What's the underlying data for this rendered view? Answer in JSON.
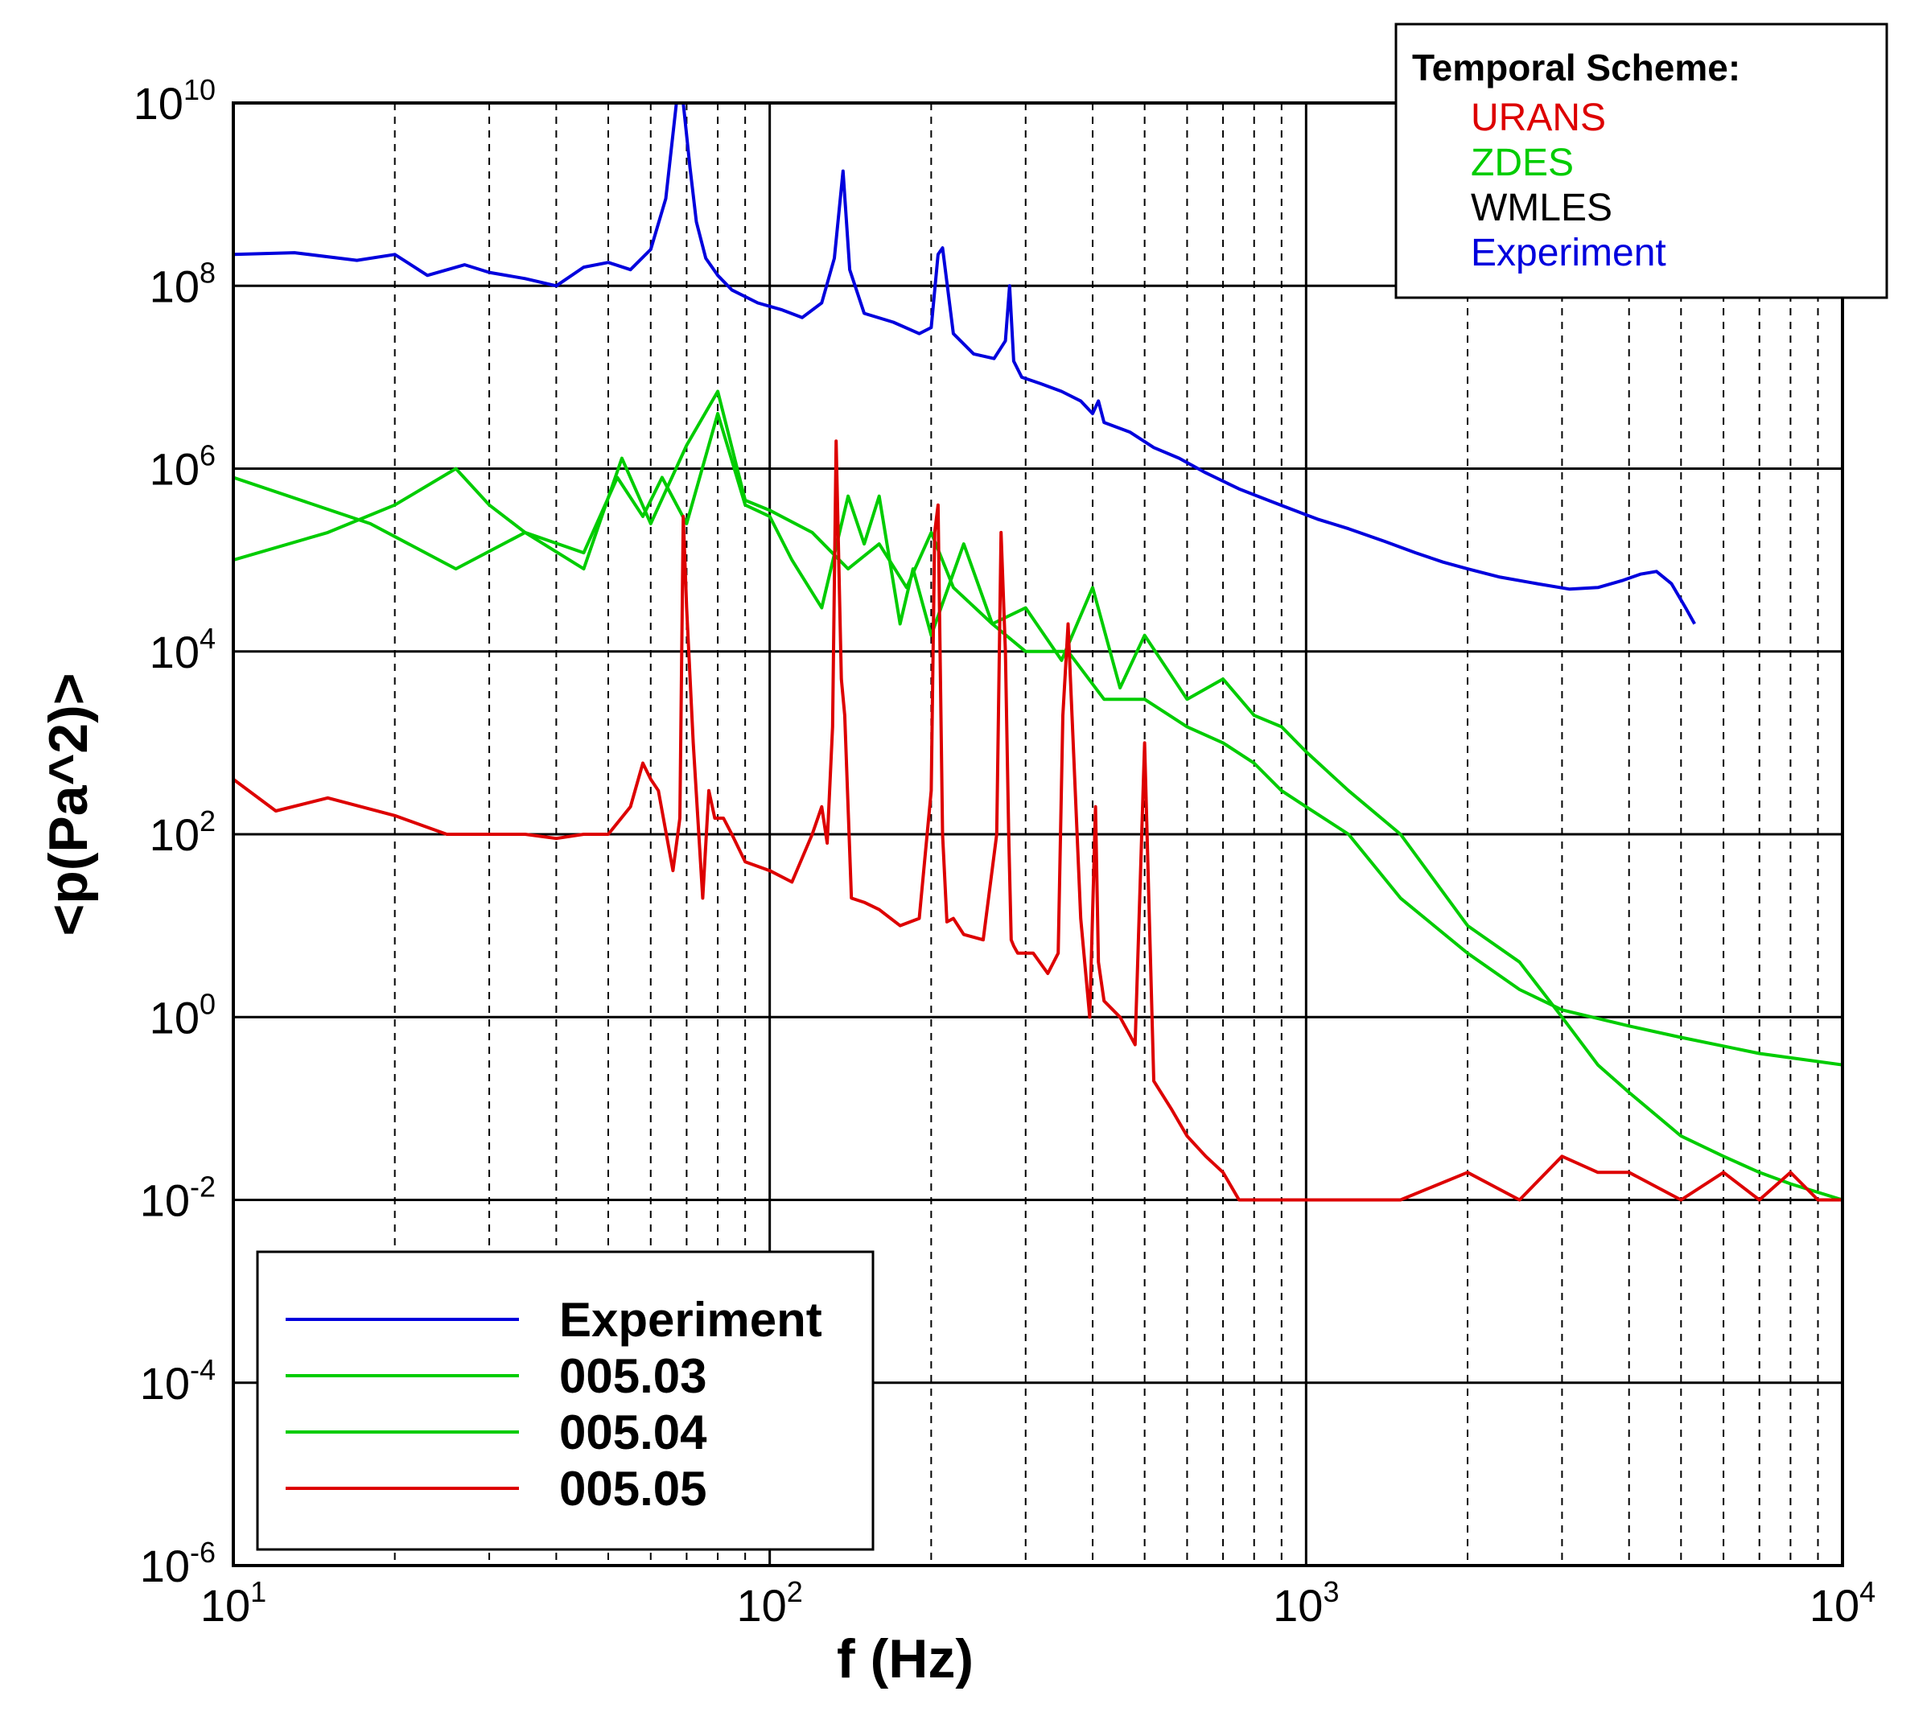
{
  "chart_data": {
    "type": "line",
    "title": "",
    "xlabel": "f (Hz)",
    "ylabel": "<p(Pa^2)>",
    "xscale": "log",
    "yscale": "log",
    "xlim": [
      10,
      10000
    ],
    "ylim": [
      1e-06,
      10000000000.0
    ],
    "x_ticks": [
      {
        "base": "10",
        "exp": "1",
        "value": 10
      },
      {
        "base": "10",
        "exp": "2",
        "value": 100
      },
      {
        "base": "10",
        "exp": "3",
        "value": 1000
      },
      {
        "base": "10",
        "exp": "4",
        "value": 10000
      }
    ],
    "y_ticks": [
      {
        "base": "10",
        "exp": "10",
        "value": 10000000000.0
      },
      {
        "base": "10",
        "exp": "8",
        "value": 100000000.0
      },
      {
        "base": "10",
        "exp": "6",
        "value": 1000000.0
      },
      {
        "base": "10",
        "exp": "4",
        "value": 10000.0
      },
      {
        "base": "10",
        "exp": "2",
        "value": 100.0
      },
      {
        "base": "10",
        "exp": "0",
        "value": 1
      },
      {
        "base": "10",
        "exp": "-2",
        "value": 0.01
      },
      {
        "base": "10",
        "exp": "-4",
        "value": 0.0001
      },
      {
        "base": "10",
        "exp": "-6",
        "value": 1e-06
      }
    ],
    "grid": {
      "major": "solid",
      "minor_x": "dashed"
    },
    "legend": {
      "position": "bottom-left",
      "entries": [
        {
          "label": "Experiment",
          "color": "#0000dd"
        },
        {
          "label": "005.03",
          "color": "#00cc00"
        },
        {
          "label": "005.04",
          "color": "#00cc00"
        },
        {
          "label": "005.05",
          "color": "#dd0000"
        }
      ]
    },
    "scheme_box": {
      "position": "top-right",
      "title": "Temporal Scheme:",
      "entries": [
        {
          "label": "URANS",
          "color": "#dd0000"
        },
        {
          "label": "ZDES",
          "color": "#00cc00"
        },
        {
          "label": "WMLES",
          "color": "#000000"
        },
        {
          "label": "Experiment",
          "color": "#0000dd"
        }
      ]
    },
    "series": [
      {
        "name": "Experiment",
        "color": "#0000dd",
        "x": [
          10,
          13,
          17,
          20,
          23,
          27,
          30,
          35,
          40,
          45,
          50,
          55,
          60,
          64,
          67,
          69,
          71,
          73,
          76,
          80,
          85,
          95,
          105,
          115,
          125,
          132,
          137,
          141,
          150,
          170,
          190,
          200,
          206,
          210,
          220,
          240,
          262,
          275,
          280,
          285,
          295,
          320,
          350,
          380,
          400,
          410,
          420,
          470,
          520,
          580,
          650,
          750,
          850,
          950,
          1050,
          1200,
          1400,
          1600,
          1800,
          2000,
          2300,
          2700,
          3100,
          3500,
          3900,
          4200,
          4500,
          4800,
          5100,
          5300
        ],
        "y": [
          220000000.0,
          230000000.0,
          190000000.0,
          220000000.0,
          130000000.0,
          170000000.0,
          140000000.0,
          120000000.0,
          100000000.0,
          160000000.0,
          180000000.0,
          150000000.0,
          250000000.0,
          900000000.0,
          10000000000.0,
          10000000000.0,
          2000000000.0,
          500000000.0,
          200000000.0,
          130000000.0,
          90000000.0,
          65000000.0,
          55000000.0,
          45000000.0,
          65000000.0,
          200000000.0,
          1800000000.0,
          150000000.0,
          50000000.0,
          40000000.0,
          30000000.0,
          35000000.0,
          220000000.0,
          260000000.0,
          30000000.0,
          18000000.0,
          16000000.0,
          25000000.0,
          100000000.0,
          15000000.0,
          10000000.0,
          8500000.0,
          7000000.0,
          5500000.0,
          4000000.0,
          5500000.0,
          3200000.0,
          2500000.0,
          1700000.0,
          1300000.0,
          900000.0,
          600000.0,
          450000.0,
          350000.0,
          280000.0,
          220000.0,
          160000.0,
          120000.0,
          95000.0,
          80000.0,
          65000.0,
          55000.0,
          48000.0,
          50000.0,
          60000.0,
          70000.0,
          75000.0,
          55000.0,
          30000.0,
          20000.0
        ]
      },
      {
        "name": "005.03",
        "color": "#00cc00",
        "x": [
          10,
          18,
          26,
          35,
          45,
          53,
          60,
          70,
          80,
          90,
          100,
          120,
          140,
          160,
          180,
          200,
          220,
          260,
          300,
          360,
          420,
          500,
          600,
          700,
          800,
          900,
          1000,
          1200,
          1500,
          2000,
          2500,
          3000,
          4000,
          5000,
          7000,
          10000
        ],
        "y": [
          800000.0,
          250000.0,
          80000.0,
          200000.0,
          80000.0,
          1300000.0,
          250000.0,
          1800000.0,
          7000000.0,
          450000.0,
          350000.0,
          200000.0,
          80000.0,
          150000.0,
          50000.0,
          200000.0,
          50000.0,
          20000.0,
          10000.0,
          10000.0,
          3000.0,
          3000.0,
          1500.0,
          1000.0,
          600.0,
          300.0,
          200.0,
          100.0,
          20,
          5,
          2,
          1.2,
          0.8,
          0.6,
          0.4,
          0.3
        ]
      },
      {
        "name": "005.04",
        "color": "#00cc00",
        "x": [
          10,
          15,
          20,
          26,
          30,
          35,
          45,
          52,
          58,
          63,
          70,
          80,
          90,
          100,
          110,
          125,
          140,
          150,
          160,
          175,
          185,
          200,
          230,
          260,
          300,
          350,
          400,
          450,
          500,
          600,
          700,
          800,
          900,
          1000,
          1200,
          1500,
          2000,
          2500,
          3000,
          3500,
          4000,
          5000,
          6000,
          7000,
          8000,
          10000
        ],
        "y": [
          100000.0,
          200000.0,
          400000.0,
          1000000.0,
          400000.0,
          200000.0,
          120000.0,
          800000.0,
          300000.0,
          800000.0,
          250000.0,
          4000000.0,
          400000.0,
          300000.0,
          100000.0,
          30000.0,
          500000.0,
          150000.0,
          500000.0,
          20000.0,
          80000.0,
          15000.0,
          150000.0,
          20000.0,
          30000.0,
          8000.0,
          50000.0,
          4000.0,
          15000.0,
          3000.0,
          5000.0,
          2000.0,
          1500.0,
          800.0,
          300.0,
          100.0,
          10,
          4,
          1,
          0.3,
          0.15,
          0.05,
          0.03,
          0.02,
          0.015,
          0.01
        ]
      },
      {
        "name": "005.05",
        "color": "#dd0000",
        "x": [
          10,
          12,
          15,
          20,
          25,
          30,
          35,
          40,
          45,
          50,
          55,
          58,
          60,
          62,
          66,
          68,
          69,
          70,
          72,
          75,
          77,
          79,
          82,
          85,
          90,
          100,
          110,
          120,
          125,
          128,
          131,
          133,
          136,
          138,
          142,
          150,
          160,
          175,
          190,
          200,
          203,
          206,
          210,
          214,
          220,
          230,
          250,
          265,
          270,
          275,
          279,
          282,
          285,
          290,
          310,
          330,
          345,
          352,
          360,
          380,
          395,
          405,
          410,
          420,
          450,
          480,
          500,
          520,
          560,
          600,
          650,
          700,
          750,
          800,
          900,
          1000,
          1200,
          1500,
          2000,
          2500,
          3000,
          3500,
          4000,
          5000,
          6000,
          7000,
          8000,
          9000,
          10000
        ],
        "y": [
          400.0,
          180.0,
          250.0,
          160.0,
          100.0,
          100.0,
          100.0,
          90.0,
          100.0,
          100.0,
          200.0,
          600.0,
          400.0,
          300.0,
          40.0,
          150.0,
          300000.0,
          30000.0,
          1000.0,
          20.0,
          300.0,
          150.0,
          150.0,
          100.0,
          50.0,
          40.0,
          30.0,
          100.0,
          200.0,
          80.0,
          1500.0,
          2000000.0,
          5000.0,
          2000.0,
          20.0,
          18.0,
          15.0,
          10.0,
          12.0,
          300.0,
          200000.0,
          400000.0,
          100.0,
          11.0,
          12.0,
          8,
          7,
          100.0,
          200000.0,
          10000.0,
          100.0,
          7,
          6,
          5,
          5,
          3,
          5,
          2000.0,
          20000.0,
          12.0,
          1,
          200.0,
          4,
          1.5,
          1,
          0.5,
          1000.0,
          0.2,
          0.1,
          0.05,
          0.03,
          0.02,
          0.01,
          0.01,
          0.01,
          0.01,
          0.01,
          0.01,
          0.02,
          0.01,
          0.03,
          0.02,
          0.02,
          0.01,
          0.02,
          0.01,
          0.02,
          0.01,
          0.01
        ]
      }
    ]
  }
}
